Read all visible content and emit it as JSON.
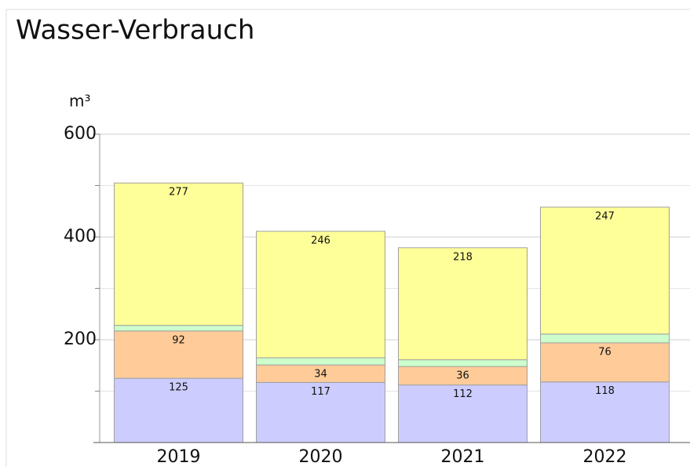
{
  "chart_data": {
    "type": "stacked_bar",
    "title": "Wasser-Verbrauch",
    "y_label": "m³",
    "categories": [
      "2019",
      "2020",
      "2021",
      "2022"
    ],
    "series": [
      {
        "color": "#ccccff",
        "values": [
          125,
          117,
          112,
          118
        ],
        "labeled": true
      },
      {
        "color": "#ffcc99",
        "values": [
          92,
          34,
          36,
          76
        ],
        "labeled": true
      },
      {
        "color": "#ccffcc",
        "values": [
          11,
          14,
          13,
          17
        ],
        "labeled": false
      },
      {
        "color": "#ffff99",
        "values": [
          277,
          246,
          218,
          247
        ],
        "labeled": true
      }
    ],
    "ylim": [
      0,
      600
    ],
    "yticks": [
      200,
      400,
      600
    ],
    "minor_yticks": [
      100,
      300,
      500
    ],
    "grid": true
  }
}
